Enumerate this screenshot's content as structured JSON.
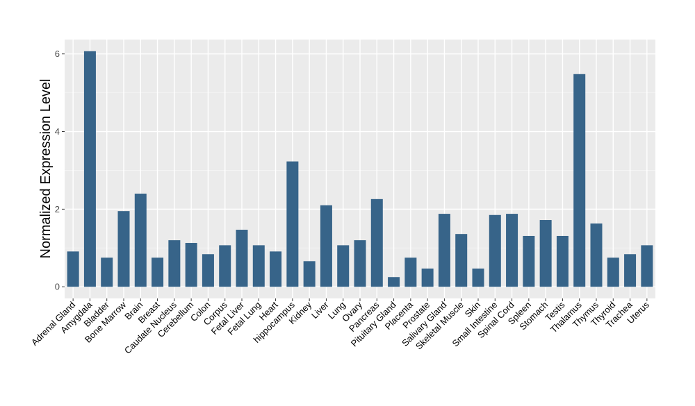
{
  "chart_data": {
    "type": "bar",
    "title": "",
    "xlabel": "",
    "ylabel": "Normalized Expression Level",
    "ylim": [
      -0.3,
      6.37
    ],
    "yticks": [
      0,
      2,
      4,
      6
    ],
    "grid": true,
    "bar_color": "#376489",
    "panel_color": "#EBEBEB",
    "categories": [
      "Adrenal Gland",
      "Amygdala",
      "Bladder",
      "Bone Marrow",
      "Brain",
      "Breast",
      "Caudate Nucleus",
      "Cerebellum",
      "Colon",
      "Corpus",
      "Fetal Liver",
      "Fetal Lung",
      "Heart",
      "hippocampus",
      "Kidney",
      "Liver",
      "Lung",
      "Ovary",
      "Pancreas",
      "Pituitary Gland",
      "Placenta",
      "Prostate",
      "Salivary Gland",
      "Skeletal Muscle",
      "Skin",
      "Small Intestine",
      "Spinal Cord",
      "Spleen",
      "Stomach",
      "Testis",
      "Thalamus",
      "Thymus",
      "Thyroid",
      "Trachea",
      "Uterus"
    ],
    "values": [
      0.91,
      6.07,
      0.75,
      1.95,
      2.4,
      0.75,
      1.2,
      1.13,
      0.84,
      1.07,
      1.47,
      1.07,
      0.91,
      3.23,
      0.66,
      2.1,
      1.07,
      1.2,
      2.26,
      0.25,
      0.75,
      0.47,
      1.88,
      1.36,
      0.47,
      1.85,
      1.88,
      1.31,
      1.72,
      1.31,
      5.48,
      1.63,
      0.75,
      0.84,
      1.07
    ]
  }
}
